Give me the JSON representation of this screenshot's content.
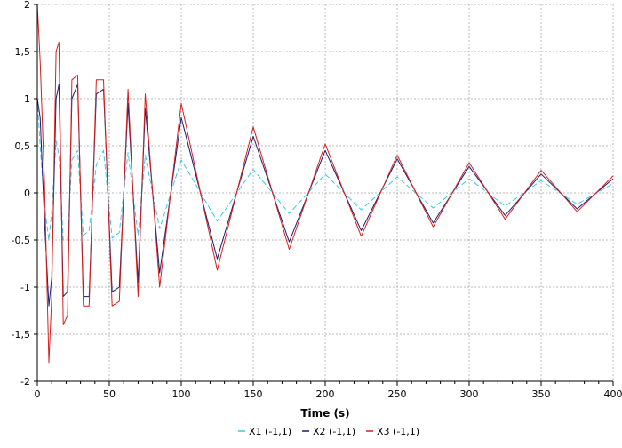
{
  "chart_data": {
    "type": "line",
    "title": "",
    "xlabel": "Time (s)",
    "ylabel": "",
    "xlim": [
      0,
      400
    ],
    "ylim": [
      -2,
      2
    ],
    "x_ticks": [
      0,
      50,
      100,
      150,
      200,
      250,
      300,
      350,
      400
    ],
    "y_ticks": [
      -2,
      -1.5,
      -1,
      -0.5,
      0,
      0.5,
      1,
      1.5,
      2
    ],
    "x_tick_labels": [
      "0",
      "50",
      "100",
      "150",
      "200",
      "250",
      "300",
      "350",
      "400"
    ],
    "y_tick_labels": [
      "-2",
      "-1,5",
      "-1",
      "-0,5",
      "0",
      "0,5",
      "1",
      "1,5",
      "2"
    ],
    "grid": true,
    "legend_position": "bottom-center",
    "series": [
      {
        "name": "X1 (-1,1)",
        "color": "#3ec8e8",
        "dash": "6,3",
        "x": [
          0,
          2,
          5,
          8,
          10,
          13,
          15,
          18,
          21,
          24,
          28,
          32,
          36,
          41,
          46,
          52,
          57,
          63,
          70,
          75,
          85,
          100,
          125,
          150,
          175,
          200,
          225,
          250,
          275,
          300,
          325,
          350,
          375,
          400
        ],
        "y": [
          1.0,
          0.5,
          -0.15,
          -0.5,
          -0.2,
          0.55,
          0.4,
          -0.5,
          -0.5,
          0.35,
          0.45,
          -0.45,
          -0.4,
          0.3,
          0.45,
          -0.48,
          -0.42,
          0.43,
          -0.45,
          0.4,
          -0.38,
          0.35,
          -0.3,
          0.25,
          -0.22,
          0.2,
          -0.18,
          0.17,
          -0.16,
          0.15,
          -0.14,
          0.13,
          -0.12,
          0.1
        ]
      },
      {
        "name": "X2 (-1,1)",
        "color": "#1a1a6e",
        "dash": "",
        "x": [
          0,
          2,
          5,
          8,
          10,
          13,
          15,
          18,
          21,
          24,
          28,
          32,
          36,
          41,
          46,
          52,
          57,
          63,
          70,
          75,
          85,
          100,
          125,
          150,
          175,
          200,
          225,
          250,
          275,
          300,
          325,
          350,
          375,
          400
        ],
        "y": [
          1.0,
          0.8,
          -0.3,
          -1.2,
          -0.9,
          1.0,
          1.15,
          -1.1,
          -1.05,
          1.0,
          1.15,
          -1.1,
          -1.1,
          1.05,
          1.1,
          -1.05,
          -1.0,
          0.95,
          -0.95,
          0.9,
          -0.85,
          0.8,
          -0.7,
          0.6,
          -0.52,
          0.45,
          -0.4,
          0.36,
          -0.32,
          0.28,
          -0.24,
          0.2,
          -0.17,
          0.15
        ]
      },
      {
        "name": "X3 (-1,1)",
        "color": "#d42020",
        "dash": "",
        "x": [
          0,
          2,
          5,
          8,
          10,
          13,
          15,
          18,
          21,
          24,
          28,
          32,
          36,
          41,
          46,
          52,
          57,
          63,
          70,
          75,
          85,
          100,
          125,
          150,
          175,
          200,
          225,
          250,
          275,
          300,
          325,
          350,
          375,
          400
        ],
        "y": [
          2.0,
          1.4,
          0.1,
          -1.8,
          -1.1,
          1.5,
          1.6,
          -1.4,
          -1.3,
          1.2,
          1.25,
          -1.2,
          -1.2,
          1.2,
          1.2,
          -1.2,
          -1.15,
          1.1,
          -1.1,
          1.05,
          -1.0,
          0.95,
          -0.82,
          0.7,
          -0.6,
          0.52,
          -0.46,
          0.4,
          -0.36,
          0.32,
          -0.28,
          0.24,
          -0.2,
          0.18
        ]
      }
    ]
  }
}
